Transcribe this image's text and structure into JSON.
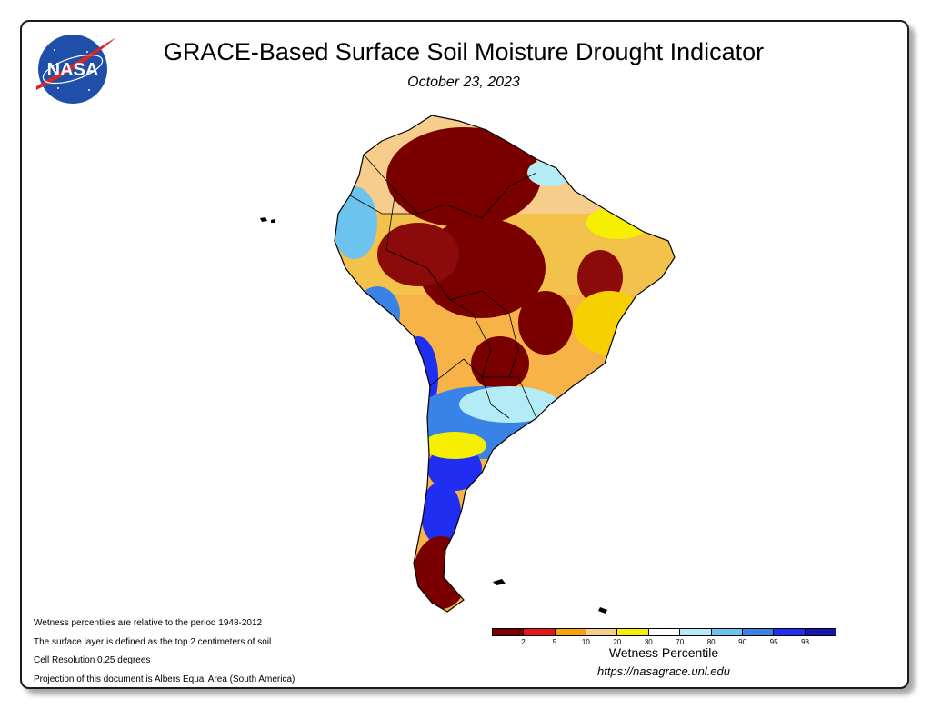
{
  "header": {
    "title": "GRACE-Based Surface Soil Moisture Drought Indicator",
    "date": "October 23, 2023"
  },
  "logo": {
    "text": "NASA",
    "icon": "nasa-meatball-logo",
    "colors": {
      "blue": "#1f4fa8",
      "red": "#d6262c"
    }
  },
  "notes": [
    "Wetness percentiles are relative to the period 1948-2012",
    "The surface layer is defined as the top 2 centimeters of soil",
    "Cell Resolution 0.25 degrees",
    "Projection of this document is Albers Equal Area (South America)"
  ],
  "legend": {
    "title": "Wetness Percentile",
    "colors": [
      "#7a0000",
      "#e8141a",
      "#f5a20f",
      "#f6cd8a",
      "#f6f000",
      "#ffffff",
      "#b3ecf6",
      "#6cc4ee",
      "#3a83e6",
      "#1f2ef0",
      "#1717b0"
    ],
    "ticks": [
      "2",
      "5",
      "10",
      "20",
      "30",
      "70",
      "80",
      "90",
      "95",
      "98"
    ]
  },
  "footer": {
    "url": "https://nasagrace.unl.edu"
  }
}
